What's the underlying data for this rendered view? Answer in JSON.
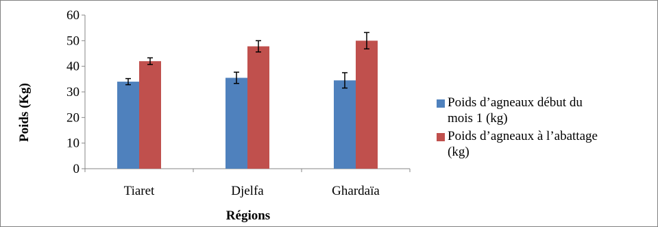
{
  "chart_data": {
    "type": "bar",
    "categories": [
      "Tiaret",
      "Djelfa",
      "Ghardaïa"
    ],
    "series": [
      {
        "name": "Poids d’agneaux début du mois 1 (kg)",
        "legend_lines": [
          "Poids d’agneaux début du",
          "mois 1 (kg)"
        ],
        "color": "#4f81bd",
        "values": [
          34.0,
          35.5,
          34.5
        ],
        "errors": [
          1.2,
          2.2,
          3.0
        ]
      },
      {
        "name": "Poids d’agneaux à l’abattage (kg)",
        "legend_lines": [
          "Poids d’agneaux à l’abattage",
          "(kg)"
        ],
        "color": "#c0504d",
        "values": [
          42.0,
          47.8,
          50.0
        ],
        "errors": [
          1.3,
          2.2,
          3.2
        ]
      }
    ],
    "title": "",
    "xlabel": "Régions",
    "ylabel": "Poids (Kg)",
    "ylim": [
      0,
      60
    ],
    "yticks": [
      0,
      10,
      20,
      30,
      40,
      50,
      60
    ],
    "grid": false,
    "legend_position": "right"
  }
}
